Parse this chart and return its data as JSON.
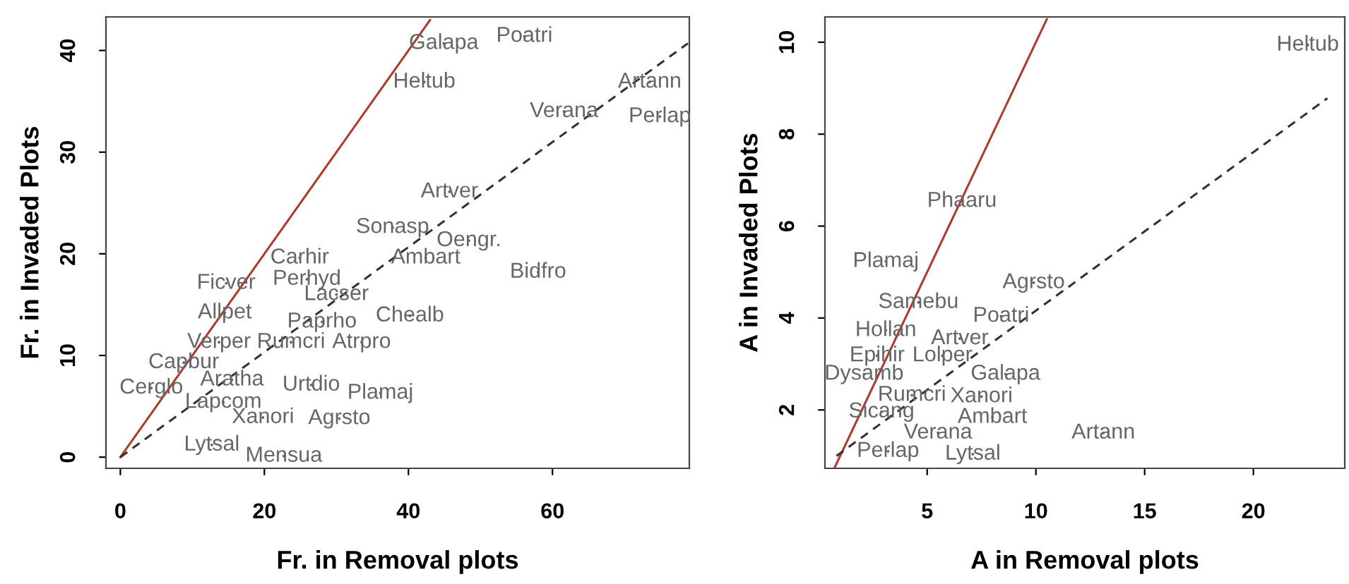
{
  "chart_data": [
    {
      "type": "scatter",
      "xlabel": "Fr. in Removal plots",
      "ylabel": "Fr. in Invaded Plots",
      "xlim": [
        -2,
        79
      ],
      "ylim": [
        -1.1,
        43.3
      ],
      "xticks": [
        0,
        20,
        40,
        60
      ],
      "yticks": [
        0,
        10,
        20,
        30,
        40
      ],
      "grid": false,
      "legend": false,
      "series": [
        {
          "marker": "circle",
          "color": "#666666",
          "x": [
            44.9,
            56.1,
            42.2,
            73.5,
            61.6,
            74.9,
            45.7,
            37.8,
            48.4,
            24.9,
            42.4,
            58.0,
            14.7,
            25.9,
            30.0,
            14.5,
            28.0,
            40.2,
            13.7,
            23.7,
            33.5,
            8.8,
            4.3,
            15.5,
            26.5,
            36.1,
            14.3,
            19.8,
            30.4,
            12.7,
            22.7
          ],
          "values": [
            40.7,
            41.4,
            36.9,
            36.9,
            34.0,
            33.5,
            26.1,
            22.6,
            21.3,
            19.6,
            19.6,
            18.2,
            17.1,
            17.5,
            16.0,
            14.2,
            13.3,
            13.9,
            11.3,
            11.3,
            11.3,
            9.3,
            6.8,
            7.6,
            7.1,
            6.3,
            5.4,
            3.9,
            3.8,
            1.2,
            0.1
          ],
          "value_labels": [
            "Galapa",
            "Poatri",
            "Heltub",
            "Artann",
            "Verana",
            "Perlap",
            "Artver",
            "Sonasp",
            "Oengr.",
            "Carhir",
            "Ambart",
            "Bidfro",
            "Ficver",
            "Perhyd",
            "Lacser",
            "Allpet",
            "Paprho",
            "Chealb",
            "Verper",
            "Rumcri",
            "Atrpro",
            "Capbur",
            "Cerglo",
            "Aratha",
            "Urtdio",
            "Plamaj",
            "Lapcom",
            "Xanori",
            "Agrsto",
            "Lytsal",
            "Mensua"
          ]
        },
        {
          "type": "line",
          "color": "#b03a2e",
          "line_style": "solid",
          "x": [
            0,
            43
          ],
          "values": [
            0,
            43
          ]
        },
        {
          "type": "line",
          "color": "#333333",
          "line_style": "dashed",
          "x": [
            0,
            78.8
          ],
          "values": [
            0,
            40.7
          ]
        }
      ]
    },
    {
      "type": "scatter",
      "xlabel": "A in Removal plots",
      "ylabel": "A in Invaded Plots",
      "xlim": [
        0.3,
        24.2
      ],
      "ylim": [
        0.73,
        10.55
      ],
      "xticks": [
        5,
        10,
        15,
        20
      ],
      "yticks": [
        2,
        4,
        6,
        8,
        10
      ],
      "grid": false,
      "legend": false,
      "series": [
        {
          "marker": "circle",
          "color": "#666666",
          "x": [
            22.5,
            6.6,
            3.1,
            9.9,
            4.6,
            8.4,
            3.1,
            6.5,
            2.7,
            5.7,
            2.1,
            8.6,
            4.3,
            7.5,
            2.9,
            8.0,
            5.5,
            13.1,
            3.2,
            7.1
          ],
          "values": [
            9.94,
            6.54,
            5.23,
            4.77,
            4.34,
            4.04,
            3.73,
            3.55,
            3.18,
            3.18,
            2.78,
            2.78,
            2.32,
            2.29,
            1.96,
            1.84,
            1.5,
            1.5,
            1.1,
            1.04
          ],
          "value_labels": [
            "Heltub",
            "Phaaru",
            "Plamaj",
            "Agrsto",
            "Samebu",
            "Poatri",
            "Hollan",
            "Artver",
            "Epihir",
            "Lolper",
            "Dysamb",
            "Galapa",
            "Rumcri",
            "Xanori",
            "Sicang",
            "Ambart",
            "Verana",
            "Artann",
            "Perlap",
            "Lytsal"
          ]
        },
        {
          "type": "line",
          "color": "#b03a2e",
          "line_style": "solid",
          "x": [
            0.75,
            10.5
          ],
          "values": [
            0.75,
            10.5
          ]
        },
        {
          "type": "line",
          "color": "#333333",
          "line_style": "dashed",
          "x": [
            0.83,
            23.4
          ],
          "values": [
            1.0,
            8.78
          ]
        }
      ]
    }
  ]
}
